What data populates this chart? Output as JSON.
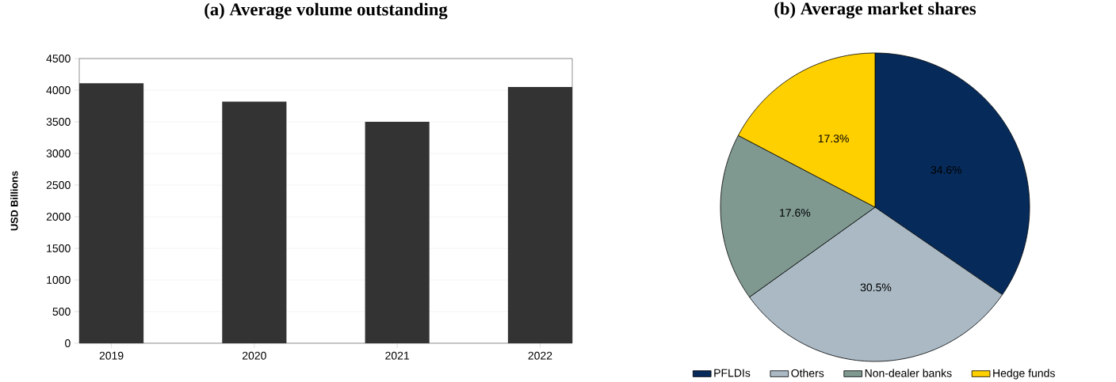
{
  "chart_data": [
    {
      "type": "bar",
      "title": "(a) Average volume outstanding",
      "ylabel": "USD Billions",
      "categories": [
        "2019",
        "2020",
        "2021",
        "2022"
      ],
      "values": [
        4110,
        3820,
        3500,
        4050
      ],
      "color": "#333333",
      "ylim": [
        0,
        4500
      ],
      "yticks": [
        0,
        500,
        1000,
        1500,
        2000,
        2500,
        3000,
        3500,
        4000,
        4500
      ],
      "grid": "y"
    },
    {
      "type": "pie",
      "title": "(b) Average market shares",
      "categories": [
        "PFLDIs",
        "Others",
        "Non-dealer banks",
        "Hedge funds"
      ],
      "values": [
        34.6,
        30.5,
        17.6,
        17.3
      ],
      "colors": [
        "#062b5b",
        "#aab9c4",
        "#7f9991",
        "#ffd000"
      ],
      "value_labels": [
        "34.6%",
        "30.5%",
        "17.6%",
        "17.3%"
      ],
      "legend": "bottom"
    }
  ]
}
